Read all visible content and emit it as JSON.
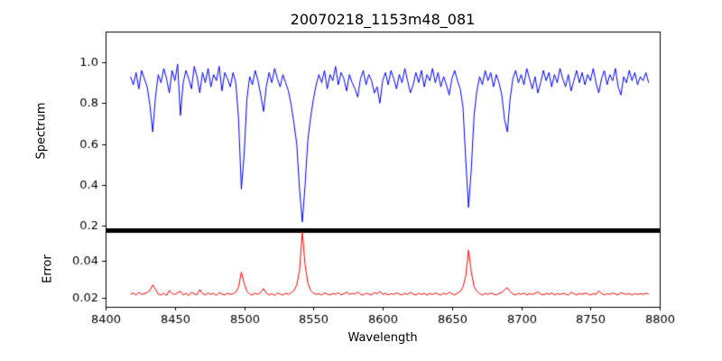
{
  "chart_data": {
    "type": "line",
    "title": "20070218_1153m48_081",
    "xlabel": "Wavelength",
    "background": "#ffffff",
    "frame_color": "#000000",
    "xlim": [
      8400,
      8800
    ],
    "xticks": [
      8400,
      8450,
      8500,
      8550,
      8600,
      8650,
      8700,
      8750,
      8800
    ],
    "xtick_labels": [
      "8400",
      "8450",
      "8500",
      "8550",
      "8600",
      "8650",
      "8700",
      "8750",
      "8800"
    ],
    "x": [
      8418,
      8420,
      8422,
      8424,
      8426,
      8428,
      8430,
      8432,
      8434,
      8436,
      8438,
      8440,
      8442,
      8444,
      8446,
      8448,
      8450,
      8452,
      8454,
      8456,
      8458,
      8460,
      8462,
      8464,
      8466,
      8468,
      8470,
      8472,
      8474,
      8476,
      8478,
      8480,
      8482,
      8484,
      8486,
      8488,
      8490,
      8492,
      8494,
      8496,
      8498,
      8500,
      8502,
      8504,
      8506,
      8508,
      8510,
      8512,
      8514,
      8516,
      8518,
      8520,
      8522,
      8524,
      8526,
      8528,
      8530,
      8532,
      8534,
      8536,
      8538,
      8540,
      8542,
      8544,
      8546,
      8548,
      8550,
      8552,
      8554,
      8556,
      8558,
      8560,
      8562,
      8564,
      8566,
      8568,
      8570,
      8572,
      8574,
      8576,
      8578,
      8580,
      8582,
      8584,
      8586,
      8588,
      8590,
      8592,
      8594,
      8596,
      8598,
      8600,
      8602,
      8604,
      8606,
      8608,
      8610,
      8612,
      8614,
      8616,
      8618,
      8620,
      8622,
      8624,
      8626,
      8628,
      8630,
      8632,
      8634,
      8636,
      8638,
      8640,
      8642,
      8644,
      8646,
      8648,
      8650,
      8652,
      8654,
      8656,
      8658,
      8660,
      8662,
      8664,
      8666,
      8668,
      8670,
      8672,
      8674,
      8676,
      8678,
      8680,
      8682,
      8684,
      8686,
      8688,
      8690,
      8692,
      8694,
      8696,
      8698,
      8700,
      8702,
      8704,
      8706,
      8708,
      8710,
      8712,
      8714,
      8716,
      8718,
      8720,
      8722,
      8724,
      8726,
      8728,
      8730,
      8732,
      8734,
      8736,
      8738,
      8740,
      8742,
      8744,
      8746,
      8748,
      8750,
      8752,
      8754,
      8756,
      8758,
      8760,
      8762,
      8764,
      8766,
      8768,
      8770,
      8772,
      8774,
      8776,
      8778,
      8780,
      8782,
      8784,
      8786,
      8788,
      8790,
      8792
    ],
    "panels": [
      {
        "ylabel": "Spectrum",
        "ylim": [
          0.18,
          1.15
        ],
        "yticks": [
          0.2,
          0.4,
          0.6,
          0.8,
          1.0
        ],
        "ytick_labels": [
          "0.2",
          "0.4",
          "0.6",
          "0.8",
          "1.0"
        ],
        "series": [
          {
            "name": "spectrum",
            "color": "#0000ff",
            "y": [
              0.93,
              0.89,
              0.95,
              0.87,
              0.96,
              0.92,
              0.88,
              0.79,
              0.66,
              0.83,
              0.94,
              0.9,
              0.97,
              0.92,
              0.85,
              0.96,
              0.91,
              0.99,
              0.74,
              0.9,
              0.96,
              0.92,
              0.87,
              0.98,
              0.93,
              0.85,
              0.95,
              0.9,
              0.97,
              0.88,
              0.94,
              0.91,
              0.98,
              0.86,
              0.95,
              0.92,
              0.88,
              0.95,
              0.9,
              0.72,
              0.38,
              0.55,
              0.82,
              0.93,
              0.89,
              0.96,
              0.91,
              0.84,
              0.76,
              0.88,
              0.95,
              0.9,
              0.97,
              0.92,
              0.88,
              0.94,
              0.9,
              0.86,
              0.79,
              0.7,
              0.6,
              0.38,
              0.22,
              0.4,
              0.62,
              0.73,
              0.82,
              0.89,
              0.94,
              0.9,
              0.96,
              0.87,
              0.94,
              0.91,
              0.98,
              0.89,
              0.95,
              0.92,
              0.86,
              0.94,
              0.9,
              0.87,
              0.83,
              0.92,
              0.96,
              0.89,
              0.94,
              0.91,
              0.85,
              0.88,
              0.8,
              0.91,
              0.95,
              0.89,
              0.96,
              0.92,
              0.87,
              0.94,
              0.9,
              0.97,
              0.91,
              0.85,
              0.89,
              0.95,
              0.9,
              0.96,
              0.88,
              0.94,
              0.91,
              0.97,
              0.9,
              0.95,
              0.88,
              0.93,
              0.89,
              0.84,
              0.92,
              0.96,
              0.91,
              0.87,
              0.78,
              0.52,
              0.29,
              0.48,
              0.74,
              0.86,
              0.93,
              0.89,
              0.96,
              0.91,
              0.95,
              0.88,
              0.94,
              0.9,
              0.84,
              0.72,
              0.66,
              0.82,
              0.92,
              0.96,
              0.9,
              0.94,
              0.89,
              0.97,
              0.92,
              0.87,
              0.93,
              0.85,
              0.9,
              0.96,
              0.91,
              0.95,
              0.88,
              0.94,
              0.9,
              0.97,
              0.92,
              0.88,
              0.94,
              0.86,
              0.91,
              0.96,
              0.9,
              0.95,
              0.89,
              0.94,
              0.91,
              0.97,
              0.9,
              0.85,
              0.92,
              0.96,
              0.89,
              0.94,
              0.91,
              0.97,
              0.88,
              0.84,
              0.93,
              0.9,
              0.96,
              0.91,
              0.95,
              0.89,
              0.93,
              0.91,
              0.95,
              0.9
            ]
          }
        ]
      },
      {
        "ylabel": "Error",
        "ylim": [
          0.015,
          0.056
        ],
        "yticks": [
          0.02,
          0.04
        ],
        "ytick_labels": [
          "0.02",
          "0.04"
        ],
        "series": [
          {
            "name": "error",
            "color": "#ff0000",
            "y": [
              0.022,
              0.0225,
              0.0215,
              0.023,
              0.0218,
              0.0222,
              0.0228,
              0.024,
              0.027,
              0.0245,
              0.022,
              0.0215,
              0.0225,
              0.0212,
              0.024,
              0.0222,
              0.0218,
              0.0228,
              0.0235,
              0.0215,
              0.0224,
              0.0212,
              0.023,
              0.022,
              0.0216,
              0.0245,
              0.0222,
              0.0215,
              0.0226,
              0.0218,
              0.0224,
              0.0212,
              0.0228,
              0.022,
              0.0215,
              0.0225,
              0.0218,
              0.0222,
              0.023,
              0.026,
              0.034,
              0.028,
              0.0235,
              0.022,
              0.0215,
              0.0225,
              0.0218,
              0.023,
              0.025,
              0.0225,
              0.0215,
              0.0222,
              0.0212,
              0.0226,
              0.022,
              0.0215,
              0.0224,
              0.0218,
              0.0228,
              0.024,
              0.027,
              0.035,
              0.056,
              0.038,
              0.028,
              0.024,
              0.0225,
              0.0218,
              0.0222,
              0.0215,
              0.0226,
              0.022,
              0.0215,
              0.0224,
              0.0218,
              0.0228,
              0.0215,
              0.0222,
              0.023,
              0.0218,
              0.0224,
              0.022,
              0.0232,
              0.0218,
              0.0215,
              0.0225,
              0.022,
              0.0215,
              0.0228,
              0.0222,
              0.0235,
              0.0218,
              0.0224,
              0.0215,
              0.0222,
              0.0218,
              0.0226,
              0.022,
              0.0215,
              0.0224,
              0.0218,
              0.023,
              0.022,
              0.0215,
              0.0225,
              0.0218,
              0.0224,
              0.0215,
              0.0222,
              0.0218,
              0.0226,
              0.022,
              0.0215,
              0.0224,
              0.0218,
              0.023,
              0.0222,
              0.0215,
              0.0225,
              0.0235,
              0.026,
              0.032,
              0.046,
              0.034,
              0.026,
              0.0235,
              0.0222,
              0.0215,
              0.0224,
              0.0218,
              0.0226,
              0.022,
              0.0215,
              0.0224,
              0.0228,
              0.0245,
              0.0255,
              0.0235,
              0.022,
              0.0215,
              0.0224,
              0.0218,
              0.0226,
              0.0215,
              0.0222,
              0.0218,
              0.0224,
              0.0232,
              0.022,
              0.0215,
              0.0224,
              0.0218,
              0.0226,
              0.0215,
              0.0222,
              0.0218,
              0.0224,
              0.022,
              0.0215,
              0.023,
              0.0222,
              0.0215,
              0.0224,
              0.0218,
              0.0226,
              0.022,
              0.0215,
              0.0222,
              0.0218,
              0.0238,
              0.0224,
              0.0215,
              0.0222,
              0.0218,
              0.0226,
              0.022,
              0.0215,
              0.0228,
              0.0222,
              0.0218,
              0.0224,
              0.0215,
              0.0222,
              0.0218,
              0.0222,
              0.0218,
              0.0225,
              0.022
            ]
          }
        ]
      }
    ]
  }
}
